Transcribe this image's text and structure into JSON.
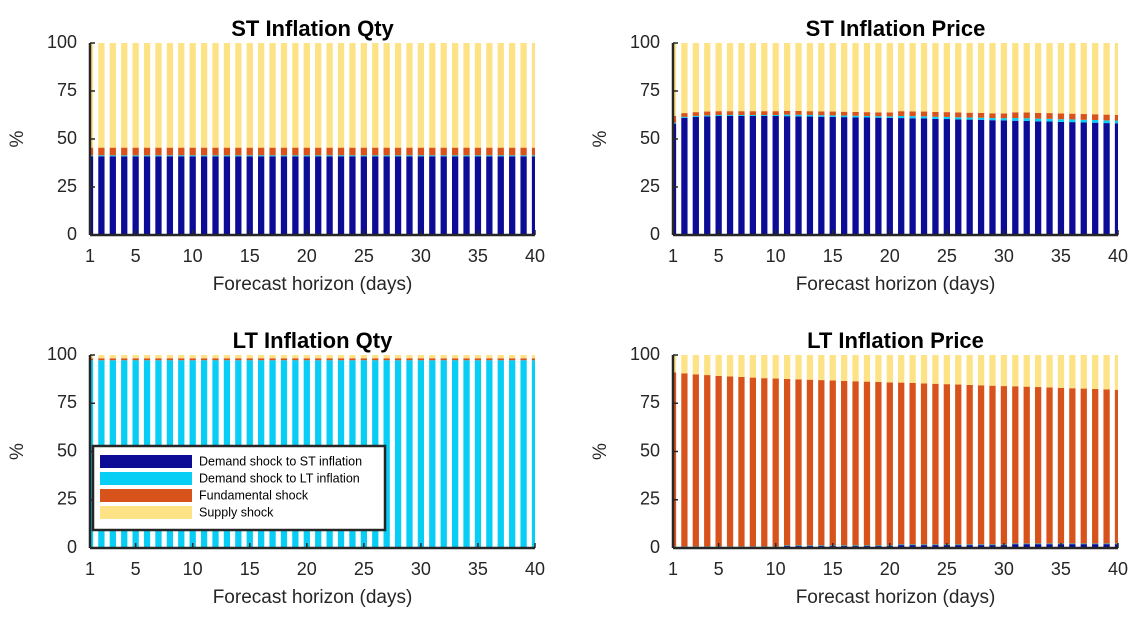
{
  "chart_data": [
    {
      "type": "bar",
      "stacked": true,
      "title": "ST Inflation Qty",
      "xlabel": "Forecast horizon (days)",
      "ylabel": "%",
      "x": [
        1,
        2,
        3,
        4,
        5,
        6,
        7,
        8,
        9,
        10,
        11,
        12,
        13,
        14,
        15,
        16,
        17,
        18,
        19,
        20,
        21,
        22,
        23,
        24,
        25,
        26,
        27,
        28,
        29,
        30,
        31,
        32,
        33,
        34,
        35,
        36,
        37,
        38,
        39,
        40
      ],
      "series": [
        {
          "color": "#0c0c96",
          "values": [
            41,
            41,
            41,
            41,
            41,
            41,
            41,
            41,
            41,
            41,
            41,
            41,
            41,
            41,
            41,
            41,
            41,
            41,
            41,
            41,
            41,
            41,
            41,
            41,
            41,
            41,
            41,
            41,
            41,
            41,
            41,
            41,
            41,
            41,
            41,
            41,
            41,
            41,
            41,
            41
          ]
        },
        {
          "color": "#08cdf5",
          "values": [
            0.5,
            0.5,
            0.5,
            0.5,
            0.5,
            0.5,
            0.5,
            0.5,
            0.5,
            0.5,
            0.5,
            0.5,
            0.5,
            0.5,
            0.5,
            0.5,
            0.5,
            0.5,
            0.5,
            0.5,
            0.5,
            0.5,
            0.5,
            0.5,
            0.5,
            0.5,
            0.5,
            0.5,
            0.5,
            0.5,
            0.5,
            0.5,
            0.5,
            0.5,
            0.5,
            0.5,
            0.5,
            0.5,
            0.5,
            0.5
          ]
        },
        {
          "color": "#d8531b",
          "values": [
            4,
            4,
            4,
            4,
            4,
            4,
            4,
            4,
            4,
            4,
            4,
            4,
            4,
            4,
            4,
            4,
            4,
            4,
            4,
            4,
            4,
            4,
            4,
            4,
            4,
            4,
            4,
            4,
            4,
            4,
            4,
            4,
            4,
            4,
            4,
            4,
            4,
            4,
            4,
            4
          ]
        },
        {
          "color": "#fde385",
          "values": [
            54.5,
            54.5,
            54.5,
            54.5,
            54.5,
            54.5,
            54.5,
            54.5,
            54.5,
            54.5,
            54.5,
            54.5,
            54.5,
            54.5,
            54.5,
            54.5,
            54.5,
            54.5,
            54.5,
            54.5,
            54.5,
            54.5,
            54.5,
            54.5,
            54.5,
            54.5,
            54.5,
            54.5,
            54.5,
            54.5,
            54.5,
            54.5,
            54.5,
            54.5,
            54.5,
            54.5,
            54.5,
            54.5,
            54.5,
            54.5
          ]
        }
      ],
      "xlim": [
        1,
        40
      ],
      "xticks": [
        1,
        5,
        10,
        15,
        20,
        25,
        30,
        35,
        40
      ],
      "ylim": [
        0,
        100
      ],
      "yticks": [
        0,
        25,
        50,
        75,
        100
      ]
    },
    {
      "type": "bar",
      "stacked": true,
      "title": "ST Inflation Price",
      "xlabel": "Forecast horizon (days)",
      "ylabel": "%",
      "x": [
        1,
        2,
        3,
        4,
        5,
        6,
        7,
        8,
        9,
        10,
        11,
        12,
        13,
        14,
        15,
        16,
        17,
        18,
        19,
        20,
        21,
        22,
        23,
        24,
        25,
        26,
        27,
        28,
        29,
        30,
        31,
        32,
        33,
        34,
        35,
        36,
        37,
        38,
        39,
        40
      ],
      "series": [
        {
          "color": "#0c0c96",
          "values": [
            58,
            61,
            61.5,
            61.8,
            62,
            62,
            62,
            62,
            62,
            62,
            61.9,
            61.8,
            61.7,
            61.6,
            61.5,
            61.4,
            61.3,
            61.2,
            61.1,
            61,
            60.9,
            60.8,
            60.7,
            60.5,
            60.4,
            60.2,
            60.1,
            60,
            59.8,
            59.7,
            59.5,
            59.4,
            59.2,
            59.1,
            58.9,
            58.8,
            58.6,
            58.5,
            58.3,
            58.2
          ]
        },
        {
          "color": "#08cdf5",
          "values": [
            0.5,
            0.5,
            0.5,
            0.5,
            0.5,
            0.5,
            0.5,
            0.5,
            0.5,
            0.5,
            0.8,
            0.8,
            0.8,
            0.8,
            0.8,
            0.8,
            0.8,
            0.8,
            0.8,
            0.8,
            1.1,
            1.1,
            1.1,
            1.1,
            1.1,
            1.1,
            1.1,
            1.1,
            1.1,
            1.1,
            1.4,
            1.4,
            1.4,
            1.4,
            1.4,
            1.4,
            1.4,
            1.4,
            1.4,
            1.4
          ]
        },
        {
          "color": "#d8531b",
          "values": [
            3.5,
            2,
            2,
            2,
            2,
            2,
            2,
            2,
            2,
            2,
            2,
            2,
            2,
            2,
            2,
            2,
            2,
            2,
            2,
            2,
            2.5,
            2.5,
            2.5,
            2.5,
            2.5,
            2.5,
            2.5,
            2.5,
            2.5,
            2.5,
            3,
            3,
            3,
            3,
            3,
            3,
            3,
            3,
            3,
            3
          ]
        },
        {
          "color": "#fde385",
          "values": [
            38,
            36.5,
            36,
            35.7,
            35.5,
            35.5,
            35.5,
            35.5,
            35.5,
            35.5,
            35.3,
            35.4,
            35.5,
            35.6,
            35.7,
            35.8,
            35.9,
            36,
            36.1,
            36.2,
            35.5,
            35.6,
            35.7,
            35.9,
            36,
            36.2,
            36.3,
            36.4,
            36.6,
            36.7,
            36.1,
            36.2,
            36.4,
            36.5,
            36.7,
            36.8,
            37,
            37.1,
            37.3,
            37.4
          ]
        }
      ],
      "xlim": [
        1,
        40
      ],
      "xticks": [
        1,
        5,
        10,
        15,
        20,
        25,
        30,
        35,
        40
      ],
      "ylim": [
        0,
        100
      ],
      "yticks": [
        0,
        25,
        50,
        75,
        100
      ]
    },
    {
      "type": "bar",
      "stacked": true,
      "title": "LT Inflation Qty",
      "xlabel": "Forecast horizon (days)",
      "ylabel": "%",
      "legend": "lower left",
      "x": [
        1,
        2,
        3,
        4,
        5,
        6,
        7,
        8,
        9,
        10,
        11,
        12,
        13,
        14,
        15,
        16,
        17,
        18,
        19,
        20,
        21,
        22,
        23,
        24,
        25,
        26,
        27,
        28,
        29,
        30,
        31,
        32,
        33,
        34,
        35,
        36,
        37,
        38,
        39,
        40
      ],
      "series": [
        {
          "name": "Demand shock to ST inflation",
          "color": "#0c0c96",
          "values": [
            0.3,
            0.3,
            0.3,
            0.3,
            0.3,
            0.3,
            0.3,
            0.3,
            0.3,
            0.3,
            0.3,
            0.3,
            0.3,
            0.3,
            0.3,
            0.3,
            0.3,
            0.3,
            0.3,
            0.3,
            0.3,
            0.3,
            0.3,
            0.3,
            0.3,
            0.3,
            0.3,
            0.3,
            0.3,
            0.3,
            0.3,
            0.3,
            0.3,
            0.3,
            0.3,
            0.3,
            0.3,
            0.3,
            0.3,
            0.3
          ]
        },
        {
          "name": "Demand shock to LT inflation",
          "color": "#08cdf5",
          "values": [
            97,
            97,
            97,
            97,
            97,
            97,
            97,
            97,
            97,
            97,
            97,
            97,
            97,
            97,
            97,
            97,
            97,
            97,
            97,
            97,
            97,
            97,
            97,
            97,
            97,
            97,
            97,
            97,
            97,
            97,
            97,
            97,
            97,
            97,
            97,
            97,
            97,
            97,
            97,
            97
          ]
        },
        {
          "name": "Fundamental shock",
          "color": "#d8531b",
          "values": [
            1,
            1,
            1,
            1,
            1,
            1,
            1,
            1,
            1,
            1,
            1,
            1,
            1,
            1,
            1,
            1,
            1,
            1,
            1,
            1,
            1,
            1,
            1,
            1,
            1,
            1,
            1,
            1,
            1,
            1,
            1,
            1,
            1,
            1,
            1,
            1,
            1,
            1,
            1,
            1
          ]
        },
        {
          "name": "Supply shock",
          "color": "#fde385",
          "values": [
            1.7,
            1.7,
            1.7,
            1.7,
            1.7,
            1.7,
            1.7,
            1.7,
            1.7,
            1.7,
            1.7,
            1.7,
            1.7,
            1.7,
            1.7,
            1.7,
            1.7,
            1.7,
            1.7,
            1.7,
            1.7,
            1.7,
            1.7,
            1.7,
            1.7,
            1.7,
            1.7,
            1.7,
            1.7,
            1.7,
            1.7,
            1.7,
            1.7,
            1.7,
            1.7,
            1.7,
            1.7,
            1.7,
            1.7,
            1.7
          ]
        }
      ],
      "xlim": [
        1,
        40
      ],
      "xticks": [
        1,
        5,
        10,
        15,
        20,
        25,
        30,
        35,
        40
      ],
      "ylim": [
        0,
        100
      ],
      "yticks": [
        0,
        25,
        50,
        75,
        100
      ]
    },
    {
      "type": "bar",
      "stacked": true,
      "title": "LT Inflation Price",
      "xlabel": "Forecast horizon (days)",
      "ylabel": "%",
      "x": [
        1,
        2,
        3,
        4,
        5,
        6,
        7,
        8,
        9,
        10,
        11,
        12,
        13,
        14,
        15,
        16,
        17,
        18,
        19,
        20,
        21,
        22,
        23,
        24,
        25,
        26,
        27,
        28,
        29,
        30,
        31,
        32,
        33,
        34,
        35,
        36,
        37,
        38,
        39,
        40
      ],
      "series": [
        {
          "color": "#0c0c96",
          "values": [
            0.5,
            0.5,
            0.5,
            0.5,
            0.5,
            0.5,
            0.5,
            0.5,
            0.5,
            0.5,
            1,
            1,
            1,
            1,
            1,
            1,
            1,
            1,
            1,
            1,
            1.5,
            1.5,
            1.5,
            1.5,
            1.5,
            1.5,
            1.5,
            1.5,
            1.5,
            1.5,
            2,
            2,
            2,
            2,
            2,
            2,
            2,
            2,
            2,
            2
          ]
        },
        {
          "color": "#08cdf5",
          "values": [
            0.3,
            0.3,
            0.3,
            0.3,
            0.3,
            0.3,
            0.3,
            0.3,
            0.3,
            0.3,
            0.3,
            0.3,
            0.3,
            0.3,
            0.3,
            0.3,
            0.3,
            0.3,
            0.3,
            0.3,
            0.3,
            0.3,
            0.3,
            0.3,
            0.3,
            0.3,
            0.3,
            0.3,
            0.3,
            0.3,
            0.3,
            0.3,
            0.3,
            0.3,
            0.3,
            0.3,
            0.3,
            0.3,
            0.3,
            0.3
          ]
        },
        {
          "color": "#d8531b",
          "values": [
            90.2,
            89.7,
            89.2,
            88.8,
            88.4,
            88.1,
            87.8,
            87.5,
            87.2,
            87,
            86.3,
            86.1,
            85.9,
            85.7,
            85.5,
            85.3,
            85.1,
            84.9,
            84.7,
            84.5,
            83.9,
            83.7,
            83.5,
            83.3,
            83.1,
            82.9,
            82.7,
            82.5,
            82.3,
            82.1,
            81.5,
            81.3,
            81.1,
            80.9,
            80.7,
            80.5,
            80.3,
            80.1,
            79.9,
            79.7
          ]
        },
        {
          "color": "#fde385",
          "values": [
            9,
            9.5,
            10,
            10.4,
            10.8,
            11.1,
            11.4,
            11.7,
            12,
            12.2,
            12.4,
            12.6,
            12.8,
            13,
            13.2,
            13.4,
            13.6,
            13.8,
            14,
            14.2,
            14.3,
            14.5,
            14.7,
            14.9,
            15.1,
            15.3,
            15.5,
            15.7,
            15.9,
            16.1,
            16.2,
            16.4,
            16.6,
            16.8,
            17,
            17.2,
            17.4,
            17.6,
            17.8,
            18
          ]
        }
      ],
      "xlim": [
        1,
        40
      ],
      "xticks": [
        1,
        5,
        10,
        15,
        20,
        25,
        30,
        35,
        40
      ],
      "ylim": [
        0,
        100
      ],
      "yticks": [
        0,
        25,
        50,
        75,
        100
      ]
    }
  ]
}
